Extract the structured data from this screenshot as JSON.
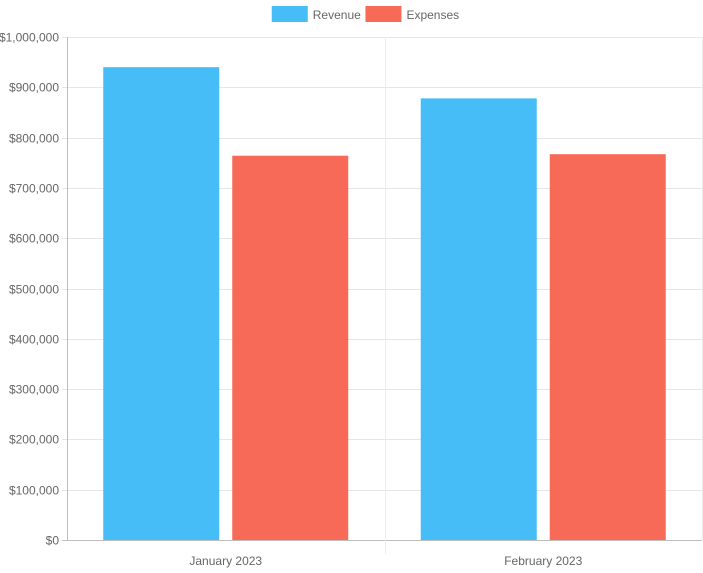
{
  "chart_data": {
    "type": "bar",
    "title": "",
    "xlabel": "",
    "ylabel": "",
    "categories": [
      "January 2023",
      "February 2023"
    ],
    "series": [
      {
        "name": "Revenue",
        "values": [
          940000,
          878000
        ],
        "color": "#46bdf6"
      },
      {
        "name": "Expenses",
        "values": [
          764000,
          767000
        ],
        "color": "#f66a57"
      }
    ],
    "ylim": [
      0,
      1000000
    ],
    "y_ticks": [
      {
        "value": 0,
        "label": "$0"
      },
      {
        "value": 100000,
        "label": "$100,000"
      },
      {
        "value": 200000,
        "label": "$200,000"
      },
      {
        "value": 300000,
        "label": "$300,000"
      },
      {
        "value": 400000,
        "label": "$400,000"
      },
      {
        "value": 500000,
        "label": "$500,000"
      },
      {
        "value": 600000,
        "label": "$600,000"
      },
      {
        "value": 700000,
        "label": "$700,000"
      },
      {
        "value": 800000,
        "label": "$800,000"
      },
      {
        "value": 900000,
        "label": "$900,000"
      },
      {
        "value": 1000000,
        "label": "$1,000,000"
      }
    ],
    "legend_position": "top-center",
    "grid": true
  }
}
